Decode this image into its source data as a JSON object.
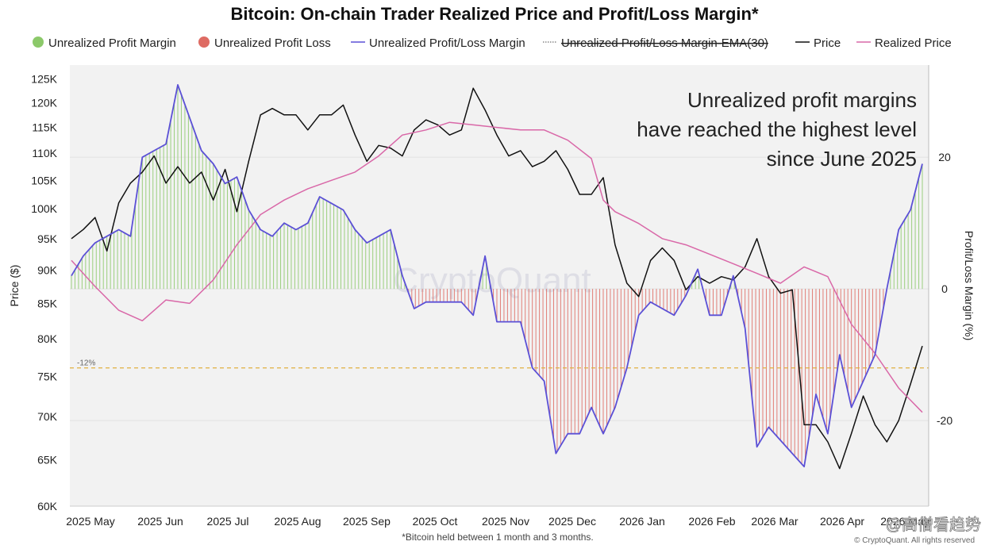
{
  "chart_data": {
    "type": "line",
    "title": "Bitcoin: On-chain Trader Realized Price and Profit/Loss Margin*",
    "legend": {
      "placement": "top",
      "items": [
        {
          "label": "Unrealized Profit Margin",
          "symbol": "dot",
          "color": "#8cc96a"
        },
        {
          "label": "Unrealized Profit Loss",
          "symbol": "dot",
          "color": "#de6b63"
        },
        {
          "label": "Unrealized Profit/Loss Margin",
          "symbol": "line",
          "color": "#5b50d6"
        },
        {
          "label": "Unrealized Profit/Loss Margin-EMA(30)",
          "symbol": "dotted",
          "color": "#888888",
          "struck": true
        },
        {
          "label": "Price",
          "symbol": "line",
          "color": "#111111"
        },
        {
          "label": "Realized Price",
          "symbol": "line",
          "color": "#d968a8"
        }
      ]
    },
    "x_axis": {
      "labels": [
        "2025 May",
        "2025 Jun",
        "2025 Jul",
        "2025 Aug",
        "2025 Sep",
        "2025 Oct",
        "2025 Nov",
        "2025 Dec",
        "2026 Jan",
        "2026 Feb",
        "2026 Mar",
        "2026 Apr",
        "2026 May"
      ]
    },
    "y_left": {
      "label": "Price ($)",
      "scale": "log",
      "ticks": [
        60000,
        65000,
        70000,
        75000,
        80000,
        85000,
        90000,
        95000,
        100000,
        105000,
        110000,
        115000,
        120000,
        125000
      ],
      "tick_labels": [
        "60K",
        "65K",
        "70K",
        "75K",
        "80K",
        "85K",
        "90K",
        "95K",
        "100K",
        "105K",
        "110K",
        "115K",
        "120K",
        "125K"
      ],
      "range": [
        60000,
        128000
      ]
    },
    "y_right": {
      "label": "Profit/Loss Margin (%)",
      "ticks": [
        -20,
        0,
        20
      ],
      "tick_labels": [
        "-20",
        "0",
        "20"
      ],
      "range": [
        -33,
        34
      ]
    },
    "reference_line": {
      "value": -12,
      "label": "-12%",
      "color": "#e0b040"
    },
    "annotation": [
      "Unrealized profit margins",
      "have reached the highest level",
      "since June 2025"
    ],
    "watermark": "CryptoQuant",
    "grid": true,
    "series": [
      {
        "name": "Price",
        "color": "#111111",
        "x": [
          0,
          5,
          10,
          15,
          20,
          25,
          30,
          35,
          40,
          45,
          50,
          55,
          60,
          65,
          70,
          75,
          80,
          85,
          90,
          95,
          100,
          105,
          110,
          115,
          120,
          125,
          130,
          135,
          140,
          145,
          150,
          155,
          160,
          165,
          170,
          175,
          180,
          185,
          190,
          195,
          200,
          205,
          210,
          215,
          220,
          225,
          230,
          235,
          240,
          245,
          250,
          255,
          260,
          265,
          270,
          275,
          280,
          285,
          290,
          295,
          300,
          305,
          310,
          315,
          320,
          325,
          330,
          335,
          340,
          345,
          350,
          355,
          360
        ],
        "values": [
          95000,
          96500,
          98500,
          93000,
          101000,
          104500,
          106500,
          109500,
          104500,
          107500,
          104500,
          106500,
          101500,
          107000,
          99500,
          108500,
          117500,
          118800,
          117500,
          117500,
          114500,
          117500,
          117500,
          119500,
          113500,
          108500,
          111500,
          111000,
          109500,
          114500,
          116500,
          115500,
          113500,
          114500,
          123000,
          118500,
          113500,
          109500,
          110500,
          107500,
          108500,
          110500,
          107000,
          102500,
          102500,
          105500,
          94000,
          88000,
          86000,
          91500,
          93500,
          91500,
          87000,
          89000,
          88000,
          89000,
          88500,
          90500,
          95000,
          89000,
          86500,
          87000,
          69000,
          69000,
          67000,
          64000,
          68000,
          72500,
          69000,
          67000,
          69500,
          74000,
          79000
        ]
      },
      {
        "name": "Realized Price",
        "color": "#d968a8",
        "x": [
          0,
          10,
          20,
          30,
          40,
          50,
          60,
          70,
          80,
          90,
          100,
          110,
          120,
          130,
          140,
          150,
          160,
          170,
          180,
          190,
          200,
          210,
          220,
          225,
          230,
          240,
          250,
          260,
          270,
          280,
          290,
          300,
          310,
          320,
          330,
          340,
          350,
          360
        ],
        "values": [
          91500,
          87500,
          84000,
          82500,
          85500,
          85000,
          88500,
          94000,
          99000,
          101500,
          103500,
          105000,
          106500,
          109500,
          113500,
          114500,
          116000,
          115500,
          115000,
          114500,
          114500,
          112500,
          109000,
          101500,
          99500,
          97500,
          95000,
          94000,
          92500,
          91000,
          89500,
          88000,
          90500,
          89000,
          82000,
          78000,
          73500,
          70500
        ]
      },
      {
        "name": "Unrealized Profit/Loss Margin",
        "color": "#5b50d6",
        "x": [
          0,
          5,
          10,
          15,
          20,
          25,
          30,
          35,
          40,
          45,
          50,
          55,
          60,
          65,
          70,
          75,
          80,
          85,
          90,
          95,
          100,
          105,
          110,
          115,
          120,
          125,
          130,
          135,
          140,
          145,
          150,
          155,
          160,
          165,
          170,
          175,
          180,
          185,
          190,
          195,
          200,
          205,
          210,
          215,
          220,
          225,
          230,
          235,
          240,
          245,
          250,
          255,
          260,
          265,
          270,
          275,
          280,
          285,
          290,
          295,
          300,
          305,
          310,
          315,
          320,
          325,
          330,
          335,
          340,
          345,
          350,
          355,
          360
        ],
        "values": [
          2,
          5,
          7,
          8,
          9,
          8,
          20,
          21,
          22,
          31,
          26,
          21,
          19,
          16,
          17,
          12,
          9,
          8,
          10,
          9,
          10,
          14,
          13,
          12,
          9,
          7,
          8,
          9,
          2,
          -3,
          -2,
          -2,
          -2,
          -2,
          -4,
          5,
          -5,
          -5,
          -5,
          -12,
          -14,
          -25,
          -22,
          -22,
          -18,
          -22,
          -18,
          -12,
          -4,
          -2,
          -3,
          -4,
          -1,
          3,
          -4,
          -4,
          2,
          -6,
          -24,
          -21,
          -23,
          -25,
          -27,
          -16,
          -22,
          -10,
          -18,
          -14,
          -10,
          0,
          9,
          12,
          19
        ]
      }
    ]
  },
  "footnote": "*Bitcoin held between 1 month and 3 months.",
  "credit": "© CryptoQuant. All rights reserved",
  "overlay_text": "@高僧看趋势"
}
